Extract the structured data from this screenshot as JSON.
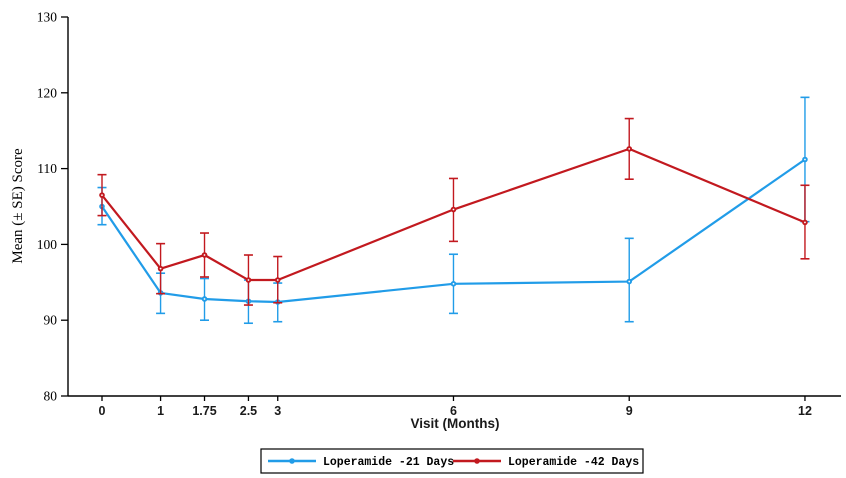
{
  "chart_data": {
    "type": "line",
    "title": "",
    "xlabel": "Visit (Months)",
    "ylabel": "Mean (± SE) Score",
    "x": [
      0,
      1,
      1.75,
      2.5,
      3,
      6,
      9,
      12
    ],
    "x_tick_labels": [
      "0",
      "1",
      "1.75",
      "2.5",
      "3",
      "6",
      "9",
      "12"
    ],
    "ylim": [
      80,
      130
    ],
    "y_ticks": [
      80,
      90,
      100,
      110,
      120,
      130
    ],
    "grid": "off",
    "legend_position": "bottom-center",
    "error_bar_type": "standard error",
    "series": [
      {
        "name": "Loperamide -21 Days",
        "color": "#219CE8",
        "means": [
          105.0,
          93.6,
          92.8,
          92.5,
          92.4,
          94.8,
          95.1,
          111.2
        ],
        "se_low": [
          102.6,
          90.9,
          90.0,
          89.6,
          89.8,
          90.9,
          89.8,
          103.0
        ],
        "se_high": [
          107.5,
          96.2,
          95.5,
          95.3,
          94.9,
          98.7,
          100.8,
          119.4
        ]
      },
      {
        "name": "Loperamide -42 Days",
        "color": "#C2191F",
        "means": [
          106.5,
          96.8,
          98.6,
          95.3,
          95.3,
          104.6,
          112.6,
          102.9
        ],
        "se_low": [
          103.8,
          93.5,
          95.7,
          92.0,
          92.3,
          100.4,
          108.6,
          98.1
        ],
        "se_high": [
          109.2,
          100.1,
          101.5,
          98.6,
          98.4,
          108.7,
          116.6,
          107.8
        ]
      }
    ]
  }
}
